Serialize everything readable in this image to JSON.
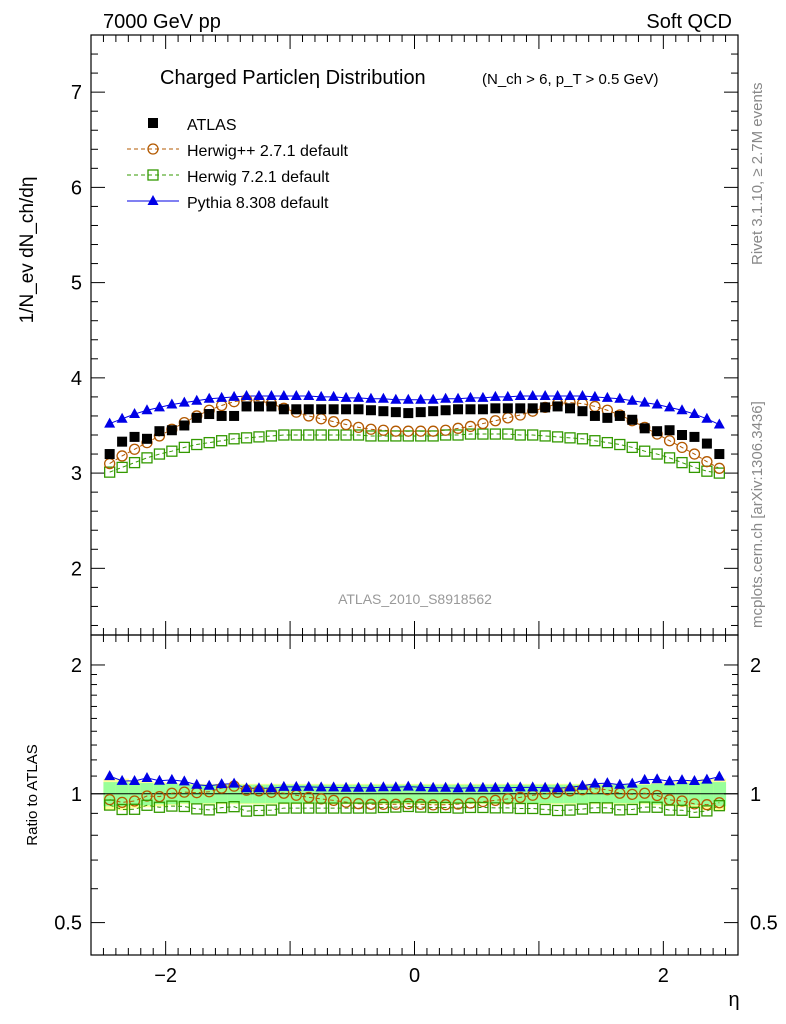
{
  "header": {
    "left": "7000 GeV pp",
    "right": "Soft QCD"
  },
  "side_labels": {
    "rivet": "Rivet 3.1.10, ≥ 2.7M events",
    "mcplots": "mcplots.cern.ch [arXiv:1306.3436]"
  },
  "watermark": "ATLAS_2010_S8918562",
  "chart_data": [
    {
      "type": "scatter",
      "panel": "main",
      "title_main": "Charged Particleη Distribution",
      "title_sub": "(N_ch > 6, p_T > 0.5 GeV)",
      "ylabel": "1/N_ev dN_ch/dη",
      "xlim": [
        -2.6,
        2.6
      ],
      "ylim": [
        1.3,
        7.6
      ],
      "yticks": [
        2,
        3,
        4,
        5,
        6,
        7
      ],
      "x": [
        -2.45,
        -2.35,
        -2.25,
        -2.15,
        -2.05,
        -1.95,
        -1.85,
        -1.75,
        -1.65,
        -1.55,
        -1.45,
        -1.35,
        -1.25,
        -1.15,
        -1.05,
        -0.95,
        -0.85,
        -0.75,
        -0.65,
        -0.55,
        -0.45,
        -0.35,
        -0.25,
        -0.15,
        -0.05,
        0.05,
        0.15,
        0.25,
        0.35,
        0.45,
        0.55,
        0.65,
        0.75,
        0.85,
        0.95,
        1.05,
        1.15,
        1.25,
        1.35,
        1.45,
        1.55,
        1.65,
        1.75,
        1.85,
        1.95,
        2.05,
        2.15,
        2.25,
        2.35,
        2.45
      ],
      "legend": [
        {
          "key": "atlas",
          "label": "ATLAS"
        },
        {
          "key": "herwigpp",
          "label": "Herwig++ 2.7.1 default"
        },
        {
          "key": "herwig7",
          "label": "Herwig 7.2.1 default"
        },
        {
          "key": "pythia",
          "label": "Pythia 8.308 default"
        }
      ],
      "series": [
        {
          "key": "atlas",
          "values": [
            3.2,
            3.33,
            3.38,
            3.36,
            3.44,
            3.45,
            3.5,
            3.58,
            3.62,
            3.6,
            3.6,
            3.7,
            3.7,
            3.7,
            3.67,
            3.67,
            3.67,
            3.67,
            3.67,
            3.67,
            3.67,
            3.66,
            3.65,
            3.64,
            3.63,
            3.64,
            3.65,
            3.66,
            3.67,
            3.67,
            3.67,
            3.68,
            3.68,
            3.68,
            3.68,
            3.69,
            3.7,
            3.68,
            3.65,
            3.6,
            3.58,
            3.6,
            3.56,
            3.47,
            3.44,
            3.45,
            3.4,
            3.38,
            3.31,
            3.2
          ]
        },
        {
          "key": "herwigpp",
          "values": [
            3.1,
            3.18,
            3.25,
            3.32,
            3.39,
            3.46,
            3.53,
            3.6,
            3.66,
            3.71,
            3.75,
            3.77,
            3.76,
            3.73,
            3.68,
            3.64,
            3.6,
            3.57,
            3.54,
            3.51,
            3.48,
            3.46,
            3.45,
            3.44,
            3.44,
            3.44,
            3.44,
            3.45,
            3.47,
            3.49,
            3.52,
            3.55,
            3.58,
            3.61,
            3.65,
            3.69,
            3.73,
            3.74,
            3.73,
            3.7,
            3.66,
            3.61,
            3.55,
            3.48,
            3.41,
            3.34,
            3.27,
            3.2,
            3.12,
            3.05
          ]
        },
        {
          "key": "herwig7",
          "values": [
            3.01,
            3.06,
            3.11,
            3.16,
            3.2,
            3.23,
            3.27,
            3.3,
            3.32,
            3.34,
            3.36,
            3.37,
            3.38,
            3.39,
            3.4,
            3.4,
            3.4,
            3.4,
            3.4,
            3.4,
            3.4,
            3.39,
            3.39,
            3.39,
            3.39,
            3.39,
            3.39,
            3.4,
            3.4,
            3.41,
            3.41,
            3.41,
            3.41,
            3.4,
            3.4,
            3.39,
            3.38,
            3.37,
            3.36,
            3.34,
            3.32,
            3.3,
            3.27,
            3.23,
            3.2,
            3.16,
            3.11,
            3.06,
            3.02,
            3.0
          ]
        },
        {
          "key": "pythia",
          "values": [
            3.52,
            3.57,
            3.62,
            3.66,
            3.69,
            3.72,
            3.74,
            3.76,
            3.78,
            3.79,
            3.8,
            3.81,
            3.81,
            3.81,
            3.81,
            3.81,
            3.81,
            3.8,
            3.8,
            3.79,
            3.79,
            3.78,
            3.78,
            3.77,
            3.77,
            3.77,
            3.77,
            3.78,
            3.78,
            3.79,
            3.79,
            3.8,
            3.8,
            3.81,
            3.81,
            3.81,
            3.81,
            3.81,
            3.81,
            3.8,
            3.79,
            3.78,
            3.76,
            3.74,
            3.72,
            3.69,
            3.66,
            3.62,
            3.57,
            3.51
          ]
        }
      ]
    },
    {
      "type": "scatter",
      "panel": "ratio",
      "ylabel": "Ratio to ATLAS",
      "xlabel": "η",
      "xlim": [
        -2.6,
        2.6
      ],
      "ylim": [
        0.42,
        2.35
      ],
      "yticks": [
        0.5,
        1,
        2
      ],
      "ytick_labels": [
        "0.5",
        "1",
        "2"
      ],
      "xticks": [
        -2,
        0,
        2
      ],
      "xtick_labels": [
        "−2",
        "0",
        "2"
      ],
      "band_inner": [
        0.065,
        0.065,
        0.06,
        0.06,
        0.055,
        0.055,
        0.05,
        0.05,
        0.05,
        0.05,
        0.05,
        0.05,
        0.05,
        0.05,
        0.05,
        0.05,
        0.05,
        0.05,
        0.05,
        0.05,
        0.05,
        0.05,
        0.05,
        0.05,
        0.05,
        0.05,
        0.05,
        0.05,
        0.05,
        0.05,
        0.05,
        0.05,
        0.05,
        0.05,
        0.05,
        0.05,
        0.05,
        0.05,
        0.05,
        0.05,
        0.05,
        0.05,
        0.05,
        0.05,
        0.055,
        0.055,
        0.06,
        0.06,
        0.065,
        0.065
      ],
      "band_outer": [
        0.085,
        0.085,
        0.075,
        0.07,
        0.065,
        0.06,
        0.055,
        0.055,
        0.055,
        0.055,
        0.055,
        0.055,
        0.055,
        0.055,
        0.055,
        0.055,
        0.055,
        0.055,
        0.055,
        0.055,
        0.055,
        0.055,
        0.055,
        0.055,
        0.055,
        0.055,
        0.055,
        0.055,
        0.055,
        0.055,
        0.055,
        0.055,
        0.055,
        0.055,
        0.055,
        0.055,
        0.055,
        0.055,
        0.055,
        0.055,
        0.055,
        0.055,
        0.055,
        0.055,
        0.06,
        0.065,
        0.07,
        0.075,
        0.085,
        0.085
      ],
      "series": [
        {
          "key": "herwigpp",
          "values": [
            0.969,
            0.955,
            0.962,
            0.988,
            0.985,
            1.003,
            1.009,
            1.006,
            1.011,
            1.031,
            1.042,
            1.019,
            1.016,
            1.008,
            1.003,
            0.992,
            0.981,
            0.973,
            0.965,
            0.956,
            0.948,
            0.945,
            0.945,
            0.945,
            0.948,
            0.945,
            0.942,
            0.943,
            0.946,
            0.951,
            0.959,
            0.965,
            0.973,
            0.981,
            0.992,
            1.0,
            1.008,
            1.016,
            1.022,
            1.028,
            1.022,
            1.003,
            0.997,
            1.003,
            0.991,
            0.968,
            0.962,
            0.947,
            0.943,
            0.953
          ]
        },
        {
          "key": "herwig7",
          "values": [
            0.941,
            0.919,
            0.92,
            0.94,
            0.93,
            0.936,
            0.934,
            0.922,
            0.917,
            0.928,
            0.933,
            0.911,
            0.914,
            0.916,
            0.926,
            0.926,
            0.926,
            0.926,
            0.926,
            0.926,
            0.926,
            0.926,
            0.929,
            0.931,
            0.934,
            0.931,
            0.929,
            0.929,
            0.926,
            0.929,
            0.929,
            0.927,
            0.927,
            0.924,
            0.924,
            0.919,
            0.914,
            0.916,
            0.921,
            0.928,
            0.927,
            0.917,
            0.919,
            0.931,
            0.93,
            0.916,
            0.915,
            0.905,
            0.912,
            0.938
          ]
        },
        {
          "key": "pythia",
          "values": [
            1.1,
            1.072,
            1.071,
            1.089,
            1.073,
            1.078,
            1.069,
            1.05,
            1.044,
            1.053,
            1.056,
            1.03,
            1.03,
            1.03,
            1.038,
            1.038,
            1.038,
            1.035,
            1.035,
            1.033,
            1.033,
            1.033,
            1.036,
            1.036,
            1.039,
            1.036,
            1.033,
            1.033,
            1.03,
            1.033,
            1.033,
            1.033,
            1.033,
            1.035,
            1.035,
            1.033,
            1.03,
            1.035,
            1.044,
            1.056,
            1.059,
            1.05,
            1.056,
            1.078,
            1.081,
            1.07,
            1.076,
            1.071,
            1.079,
            1.097
          ]
        }
      ]
    }
  ],
  "colors": {
    "atlas": "#000000",
    "herwigpp": "#b35900",
    "herwig7": "#339900",
    "pythia": "#0000e6",
    "band_inner": "#99ff99",
    "band_outer": "#ffff99",
    "side_text": "#888888",
    "watermark": "#999999"
  }
}
